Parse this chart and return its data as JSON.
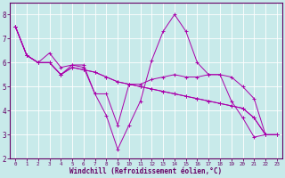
{
  "xlabel": "Windchill (Refroidissement éolien,°C)",
  "background_color": "#c8eaea",
  "grid_color": "#ffffff",
  "line_color": "#aa00aa",
  "xlim": [
    -0.5,
    23.5
  ],
  "ylim": [
    2,
    8.5
  ],
  "xticks": [
    0,
    1,
    2,
    3,
    4,
    5,
    6,
    7,
    8,
    9,
    10,
    11,
    12,
    13,
    14,
    15,
    16,
    17,
    18,
    19,
    20,
    21,
    22,
    23
  ],
  "yticks": [
    2,
    3,
    4,
    5,
    6,
    7,
    8
  ],
  "series": [
    {
      "x": [
        0,
        1,
        2,
        3,
        4,
        5,
        6,
        7,
        8,
        9,
        10,
        11,
        12,
        13,
        14,
        15,
        16,
        17,
        18,
        19,
        20,
        21,
        22,
        23
      ],
      "y": [
        7.5,
        6.3,
        6.0,
        6.4,
        5.8,
        5.9,
        5.9,
        4.7,
        3.8,
        2.4,
        3.4,
        4.4,
        6.1,
        7.3,
        8.0,
        7.3,
        6.0,
        5.5,
        5.5,
        4.4,
        3.7,
        2.9,
        3.0,
        3.0
      ]
    },
    {
      "x": [
        0,
        1,
        2,
        3,
        4,
        5,
        6,
        7,
        8,
        9,
        10,
        11,
        12,
        13,
        14,
        15,
        16,
        17,
        18,
        19,
        20,
        21,
        22,
        23
      ],
      "y": [
        7.5,
        6.3,
        6.0,
        6.0,
        5.5,
        5.9,
        5.8,
        4.7,
        4.7,
        3.4,
        5.1,
        5.1,
        5.3,
        5.4,
        5.5,
        5.4,
        5.4,
        5.5,
        5.5,
        5.4,
        5.0,
        4.5,
        3.0,
        3.0
      ]
    },
    {
      "x": [
        0,
        1,
        2,
        3,
        4,
        5,
        6,
        7,
        8,
        9,
        10,
        11,
        12,
        13,
        14,
        15,
        16,
        17,
        18,
        19,
        20,
        21,
        22,
        23
      ],
      "y": [
        7.5,
        6.3,
        6.0,
        6.0,
        5.5,
        5.8,
        5.7,
        5.6,
        5.4,
        5.2,
        5.1,
        5.0,
        4.9,
        4.8,
        4.7,
        4.6,
        4.5,
        4.4,
        4.3,
        4.2,
        4.1,
        3.7,
        3.0,
        3.0
      ]
    },
    {
      "x": [
        0,
        1,
        2,
        3,
        4,
        5,
        6,
        7,
        8,
        9,
        10,
        11,
        12,
        13,
        14,
        15,
        16,
        17,
        18,
        19,
        20,
        21,
        22,
        23
      ],
      "y": [
        7.5,
        6.3,
        6.0,
        6.0,
        5.5,
        5.8,
        5.7,
        5.6,
        5.4,
        5.2,
        5.1,
        5.0,
        4.9,
        4.8,
        4.7,
        4.6,
        4.5,
        4.4,
        4.3,
        4.2,
        4.1,
        3.7,
        3.0,
        3.0
      ]
    }
  ]
}
